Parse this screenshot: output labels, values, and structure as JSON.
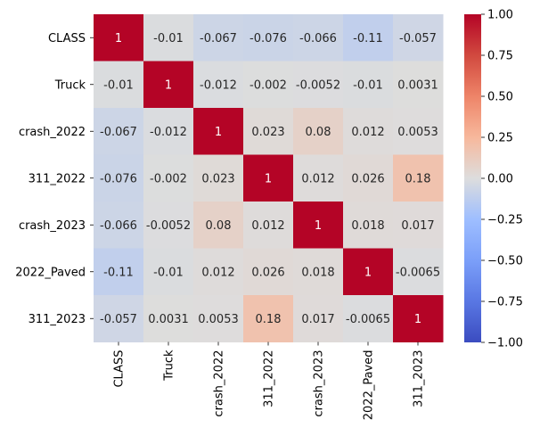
{
  "chart_data": {
    "type": "heatmap",
    "title": "",
    "xlabel": "",
    "ylabel": "",
    "row_labels": [
      "CLASS",
      "Truck",
      "crash_2022",
      "311_2022",
      "crash_2023",
      "2022_Paved",
      "311_2023"
    ],
    "col_labels": [
      "CLASS",
      "Truck",
      "crash_2022",
      "311_2022",
      "crash_2023",
      "2022_Paved",
      "311_2023"
    ],
    "values": [
      [
        1,
        -0.01,
        -0.067,
        -0.076,
        -0.066,
        -0.11,
        -0.057
      ],
      [
        -0.01,
        1,
        -0.012,
        -0.002,
        -0.0052,
        -0.01,
        0.0031
      ],
      [
        -0.067,
        -0.012,
        1,
        0.023,
        0.08,
        0.012,
        0.0053
      ],
      [
        -0.076,
        -0.002,
        0.023,
        1,
        0.012,
        0.026,
        0.18
      ],
      [
        -0.066,
        -0.0052,
        0.08,
        0.012,
        1,
        0.018,
        0.017
      ],
      [
        -0.11,
        -0.01,
        0.012,
        0.026,
        0.018,
        1,
        -0.0065
      ],
      [
        -0.057,
        0.0031,
        0.0053,
        0.18,
        0.017,
        -0.0065,
        1
      ]
    ],
    "cell_text": [
      [
        "1",
        "-0.01",
        "-0.067",
        "-0.076",
        "-0.066",
        "-0.11",
        "-0.057"
      ],
      [
        "-0.01",
        "1",
        "-0.012",
        "-0.002",
        "-0.0052",
        "-0.01",
        "0.0031"
      ],
      [
        "-0.067",
        "-0.012",
        "1",
        "0.023",
        "0.08",
        "0.012",
        "0.0053"
      ],
      [
        "-0.076",
        "-0.002",
        "0.023",
        "1",
        "0.012",
        "0.026",
        "0.18"
      ],
      [
        "-0.066",
        "-0.0052",
        "0.08",
        "0.012",
        "1",
        "0.018",
        "0.017"
      ],
      [
        "-0.11",
        "-0.01",
        "0.012",
        "0.026",
        "0.018",
        "1",
        "-0.0065"
      ],
      [
        "-0.057",
        "0.0031",
        "0.0053",
        "0.18",
        "0.017",
        "-0.0065",
        "1"
      ]
    ],
    "colormap": "coolwarm",
    "vmin": -1,
    "vmax": 1,
    "colorbar": {
      "range": [
        -1,
        1
      ],
      "ticks": [
        1.0,
        0.75,
        0.5,
        0.25,
        0.0,
        -0.25,
        -0.5,
        -0.75,
        -1.0
      ],
      "tick_labels": [
        "1.00",
        "0.75",
        "0.50",
        "0.25",
        "0.00",
        "−0.25",
        "−0.50",
        "−0.75",
        "−1.00"
      ],
      "placement": "right"
    },
    "grid": false,
    "legend": "none"
  }
}
